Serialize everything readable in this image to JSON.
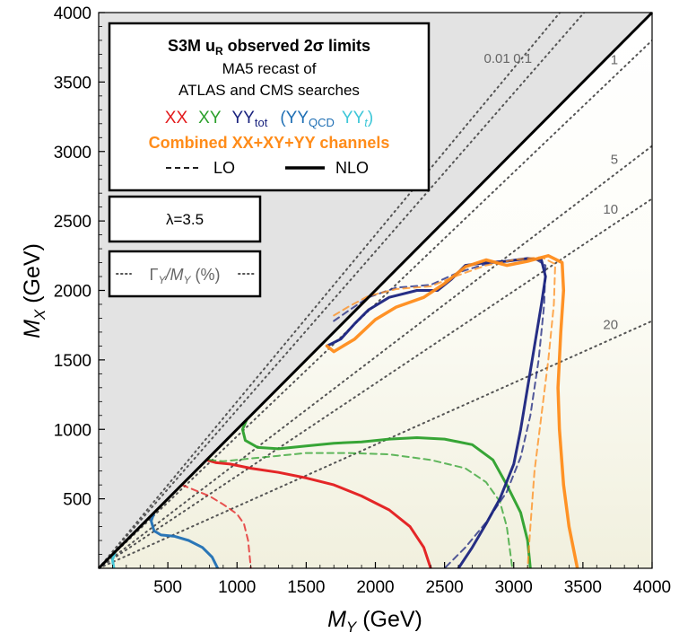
{
  "chart_data": {
    "type": "line",
    "title": "S3M u_R observed 2σ limits",
    "xlabel": "M_Y (GeV)",
    "ylabel": "M_X (GeV)",
    "xlim": [
      0,
      4000
    ],
    "ylim": [
      0,
      4000
    ],
    "x_ticks": [
      "500",
      "1000",
      "1500",
      "2000",
      "2500",
      "3000",
      "3500",
      "4000"
    ],
    "y_ticks": [
      "500",
      "1000",
      "1500",
      "2000",
      "2500",
      "3000",
      "3500",
      "4000"
    ],
    "grid": false,
    "legend": {
      "placement": "top-left",
      "title_main": "S3M u",
      "title_sub": "R",
      "title_rest": " observed 2σ limits",
      "line1": "MA5 recast of",
      "line2": "ATLAS and CMS searches",
      "xx": "XX",
      "xy": "XY",
      "yy_main": "YY",
      "yy_sub": "tot",
      "yyqcd_main": "(YY",
      "yyqcd_sub": "QCD",
      "yyt_main": "YY",
      "yyt_sub": "t",
      "yyt_close": ")",
      "combined": "Combined XX+XY+YY channels",
      "lo": "LO",
      "nlo": "NLO"
    },
    "lambda_box": "λ=3.5",
    "width_box": {
      "gamma": "Γ",
      "sub1": "Y",
      "slash": "/M",
      "sub2": "Y",
      "unit": " (%)"
    },
    "width_contours": [
      {
        "label": "0.01",
        "slope": 1.2
      },
      {
        "label": "0.1",
        "slope": 1.14
      },
      {
        "label": "1",
        "slope": 0.95
      },
      {
        "label": "5",
        "slope": 0.76
      },
      {
        "label": "10",
        "slope": 0.665
      },
      {
        "label": "20",
        "slope": 0.445
      }
    ],
    "series": [
      {
        "name": "XX",
        "order": "NLO",
        "color": "#e31a1c",
        "points": [
          [
            780,
            780
          ],
          [
            850,
            760
          ],
          [
            950,
            750
          ],
          [
            1100,
            720
          ],
          [
            1300,
            690
          ],
          [
            1500,
            650
          ],
          [
            1700,
            600
          ],
          [
            1900,
            520
          ],
          [
            2100,
            420
          ],
          [
            2250,
            300
          ],
          [
            2350,
            150
          ],
          [
            2400,
            0
          ]
        ]
      },
      {
        "name": "XX",
        "order": "LO",
        "color": "#e31a1c",
        "points": [
          [
            600,
            600
          ],
          [
            700,
            560
          ],
          [
            800,
            520
          ],
          [
            900,
            460
          ],
          [
            1000,
            390
          ],
          [
            1050,
            320
          ],
          [
            1080,
            200
          ],
          [
            1100,
            0
          ]
        ]
      },
      {
        "name": "XY",
        "order": "NLO",
        "color": "#2ca02c",
        "points": [
          [
            1070,
            1070
          ],
          [
            1040,
            1000
          ],
          [
            1060,
            920
          ],
          [
            1150,
            870
          ],
          [
            1300,
            860
          ],
          [
            1500,
            880
          ],
          [
            1700,
            900
          ],
          [
            1900,
            910
          ],
          [
            2100,
            930
          ],
          [
            2300,
            940
          ],
          [
            2500,
            930
          ],
          [
            2700,
            890
          ],
          [
            2850,
            780
          ],
          [
            2950,
            600
          ],
          [
            3050,
            400
          ],
          [
            3100,
            200
          ],
          [
            3120,
            0
          ]
        ]
      },
      {
        "name": "XY",
        "order": "LO",
        "color": "#2ca02c",
        "points": [
          [
            800,
            780
          ],
          [
            900,
            770
          ],
          [
            1100,
            790
          ],
          [
            1300,
            810
          ],
          [
            1500,
            830
          ],
          [
            1800,
            830
          ],
          [
            2100,
            820
          ],
          [
            2400,
            780
          ],
          [
            2650,
            720
          ],
          [
            2800,
            620
          ],
          [
            2900,
            480
          ],
          [
            2950,
            300
          ],
          [
            2990,
            0
          ]
        ]
      },
      {
        "name": "YY_tot",
        "order": "NLO",
        "color": "#1a237e",
        "points": [
          [
            1650,
            1600
          ],
          [
            1750,
            1650
          ],
          [
            1850,
            1760
          ],
          [
            1950,
            1860
          ],
          [
            2100,
            1950
          ],
          [
            2300,
            2000
          ],
          [
            2450,
            2000
          ],
          [
            2550,
            2080
          ],
          [
            2650,
            2180
          ],
          [
            2800,
            2200
          ],
          [
            2950,
            2210
          ],
          [
            3100,
            2230
          ],
          [
            3200,
            2220
          ],
          [
            3230,
            2100
          ],
          [
            3200,
            1900
          ],
          [
            3150,
            1600
          ],
          [
            3100,
            1300
          ],
          [
            3050,
            1000
          ],
          [
            3000,
            750
          ],
          [
            2900,
            500
          ],
          [
            2800,
            320
          ],
          [
            2700,
            150
          ],
          [
            2600,
            0
          ]
        ]
      },
      {
        "name": "YY_tot",
        "order": "LO",
        "color": "#1a237e",
        "points": [
          [
            1700,
            1780
          ],
          [
            1800,
            1850
          ],
          [
            1950,
            1950
          ],
          [
            2150,
            2020
          ],
          [
            2400,
            2040
          ],
          [
            2600,
            2130
          ],
          [
            2800,
            2190
          ],
          [
            3000,
            2220
          ],
          [
            3150,
            2230
          ],
          [
            3230,
            2180
          ],
          [
            3220,
            1900
          ],
          [
            3180,
            1500
          ],
          [
            3120,
            1100
          ],
          [
            3050,
            800
          ],
          [
            2950,
            550
          ],
          [
            2800,
            330
          ],
          [
            2650,
            150
          ],
          [
            2500,
            0
          ]
        ]
      },
      {
        "name": "YY_QCD",
        "order": "NLO",
        "color": "#1f6fb4",
        "points": [
          [
            400,
            400
          ],
          [
            380,
            340
          ],
          [
            400,
            270
          ],
          [
            450,
            240
          ],
          [
            550,
            230
          ],
          [
            650,
            200
          ],
          [
            750,
            150
          ],
          [
            820,
            80
          ],
          [
            860,
            0
          ]
        ]
      },
      {
        "name": "YY_t",
        "order": "NLO",
        "color": "#3ec7d8",
        "points": [
          [
            120,
            120
          ],
          [
            100,
            60
          ],
          [
            110,
            0
          ]
        ]
      },
      {
        "name": "Combined",
        "order": "NLO",
        "color": "#ff8c1a",
        "points": [
          [
            1650,
            1600
          ],
          [
            1700,
            1560
          ],
          [
            1850,
            1650
          ],
          [
            2000,
            1790
          ],
          [
            2150,
            1880
          ],
          [
            2350,
            1950
          ],
          [
            2500,
            2050
          ],
          [
            2650,
            2170
          ],
          [
            2800,
            2220
          ],
          [
            2950,
            2180
          ],
          [
            3100,
            2210
          ],
          [
            3250,
            2250
          ],
          [
            3350,
            2200
          ],
          [
            3360,
            2000
          ],
          [
            3340,
            1700
          ],
          [
            3320,
            1300
          ],
          [
            3330,
            1000
          ],
          [
            3360,
            600
          ],
          [
            3400,
            300
          ],
          [
            3460,
            0
          ]
        ]
      },
      {
        "name": "Combined",
        "order": "LO",
        "color": "#ff8c1a",
        "points": [
          [
            1700,
            1820
          ],
          [
            1800,
            1880
          ],
          [
            1950,
            1960
          ],
          [
            2150,
            2010
          ],
          [
            2400,
            2030
          ],
          [
            2600,
            2110
          ],
          [
            2800,
            2180
          ],
          [
            3000,
            2220
          ],
          [
            3200,
            2240
          ],
          [
            3300,
            2190
          ],
          [
            3290,
            1900
          ],
          [
            3250,
            1500
          ],
          [
            3200,
            1100
          ],
          [
            3150,
            700
          ],
          [
            3120,
            300
          ],
          [
            3100,
            0
          ]
        ]
      }
    ]
  }
}
